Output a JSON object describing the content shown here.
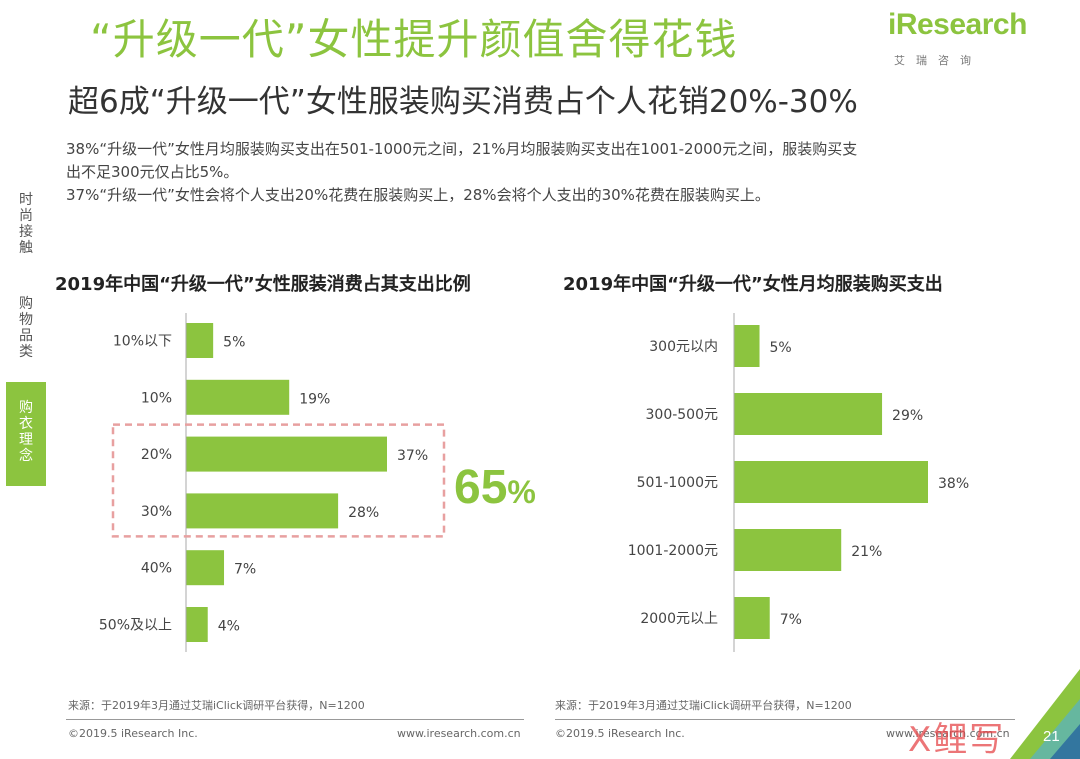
{
  "header": {
    "title": "“升级一代”女性提升颜值舍得花钱",
    "subtitle": "超6成“升级一代”女性服装购买消费占个人花销20%-30%",
    "logo_brand": "iResearch",
    "logo_sub": "艾瑞咨询",
    "brand_color": "#8cc43f"
  },
  "description": [
    "38%“升级一代”女性月均服装购买支出在501-1000元之间，21%月均服装购买支出在1001-2000元之间，服装购买支",
    "出不足300元仅占比5%。",
    "37%“升级一代”女性会将个人支出20%花费在服装购买上，28%会将个人支出的30%花费在服装购买上。"
  ],
  "side_nav": [
    {
      "label": "时\n尚\n接\n触",
      "active": false
    },
    {
      "label": "购\n物\n品\n类",
      "active": false
    },
    {
      "label": "购\n衣\n理\n念",
      "active": true
    }
  ],
  "highlight": {
    "number": "65",
    "unit": "%"
  },
  "chart_data": [
    {
      "type": "bar",
      "orientation": "horizontal",
      "title": "2019年中国“升级一代”女性服装消费占其支出比例",
      "categories": [
        "10%以下",
        "10%",
        "20%",
        "30%",
        "40%",
        "50%及以上"
      ],
      "values": [
        5,
        19,
        37,
        28,
        7,
        4
      ],
      "value_labels": [
        "5%",
        "19%",
        "37%",
        "28%",
        "7%",
        "4%"
      ],
      "highlight_categories": [
        "20%",
        "30%"
      ],
      "xlim": [
        0,
        45
      ],
      "grid": false,
      "color": "#8cc43f"
    },
    {
      "type": "bar",
      "orientation": "horizontal",
      "title": "2019年中国“升级一代”女性月均服装购买支出",
      "categories": [
        "300元以内",
        "300-500元",
        "501-1000元",
        "1001-2000元",
        "2000元以上"
      ],
      "values": [
        5,
        29,
        38,
        21,
        7
      ],
      "value_labels": [
        "5%",
        "29%",
        "38%",
        "21%",
        "7%"
      ],
      "xlim": [
        0,
        45
      ],
      "grid": false,
      "color": "#8cc43f"
    }
  ],
  "sources": [
    "来源：于2019年3月通过艾瑞iClick调研平台获得，N=1200",
    "来源：于2019年3月通过艾瑞iClick调研平台获得，N=1200"
  ],
  "footer": {
    "copyright_left": "©2019.5 iResearch Inc.",
    "url_left": "www.iresearch.com.cn",
    "copyright_right": "©2019.5 iResearch Inc.",
    "url_right": "www.iresearch.com.cn",
    "page_number": "21",
    "watermark": "X鲤写"
  }
}
